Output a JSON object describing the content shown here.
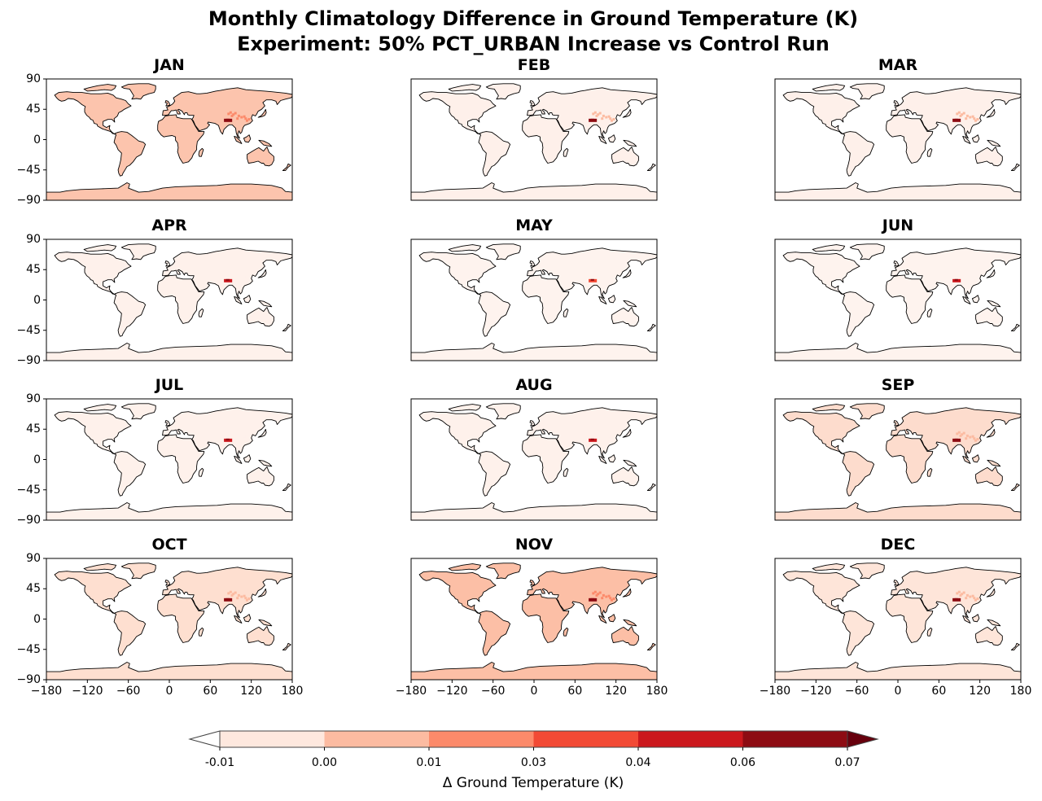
{
  "chart_data": {
    "type": "heatmap",
    "subtype": "small-multiple geographic maps (PlateCarree)",
    "title": "Monthly Climatology Difference in Ground Temperature (K)",
    "subtitle": "Experiment: 50% PCT_URBAN Increase vs Control Run",
    "xlabel": "",
    "ylabel": "",
    "xlim": [
      -180,
      180
    ],
    "ylim": [
      -90,
      90
    ],
    "xticks": [
      "−180",
      "−120",
      "−60",
      "0",
      "60",
      "120",
      "180"
    ],
    "xtick_values": [
      -180,
      -120,
      -60,
      0,
      60,
      120,
      180
    ],
    "yticks": [
      "90",
      "45",
      "0",
      "−45",
      "−90"
    ],
    "ytick_values": [
      90,
      45,
      0,
      -45,
      -90
    ],
    "grid": false,
    "colorbar": {
      "label": "Δ Ground Temperature (K)",
      "placement": "bottom",
      "extend": "both",
      "levels": [
        -0.01,
        0.0,
        0.01,
        0.03,
        0.04,
        0.06,
        0.07
      ],
      "tick_labels": [
        "-0.01",
        "0.00",
        "0.01",
        "0.03",
        "0.04",
        "0.06",
        "0.07"
      ],
      "colors": [
        "#fee8de",
        "#fcbba1",
        "#fc8a6a",
        "#f24a35",
        "#cb181d",
        "#8d0c13"
      ],
      "under_color": "#ffffff",
      "over_color": "#67000d"
    },
    "panels": [
      {
        "month": "JAN",
        "land_level": 1,
        "hotspot_level": 5,
        "east_asia_level": 2
      },
      {
        "month": "FEB",
        "land_level": 0,
        "hotspot_level": 5,
        "east_asia_level": 1
      },
      {
        "month": "MAR",
        "land_level": 0,
        "hotspot_level": 5,
        "east_asia_level": 1
      },
      {
        "month": "APR",
        "land_level": 0,
        "hotspot_level": 4,
        "east_asia_level": 0
      },
      {
        "month": "MAY",
        "land_level": 0,
        "hotspot_level": 3,
        "east_asia_level": 0
      },
      {
        "month": "JUN",
        "land_level": 0,
        "hotspot_level": 4,
        "east_asia_level": 0
      },
      {
        "month": "JUL",
        "land_level": 0,
        "hotspot_level": 4,
        "east_asia_level": 0
      },
      {
        "month": "AUG",
        "land_level": 0,
        "hotspot_level": 4,
        "east_asia_level": 0
      },
      {
        "month": "SEP",
        "land_level": 0,
        "hotspot_level": 5,
        "east_asia_level": 1
      },
      {
        "month": "OCT",
        "land_level": 0,
        "hotspot_level": 5,
        "east_asia_level": 1
      },
      {
        "month": "NOV",
        "land_level": 1,
        "hotspot_level": 5,
        "east_asia_level": 2
      },
      {
        "month": "DEC",
        "land_level": 0,
        "hotspot_level": 5,
        "east_asia_level": 1
      }
    ],
    "land_tint": {
      "JAN": "#fcc4ad",
      "FEB": "#fef0ea",
      "MAR": "#fef0ea",
      "APR": "#fef1eb",
      "MAY": "#fef3ee",
      "JUN": "#fef3ee",
      "JUL": "#fef1eb",
      "AUG": "#fef1eb",
      "SEP": "#fddccd",
      "OCT": "#fedfd0",
      "NOV": "#fcbfa6",
      "DEC": "#fee5d9"
    }
  }
}
